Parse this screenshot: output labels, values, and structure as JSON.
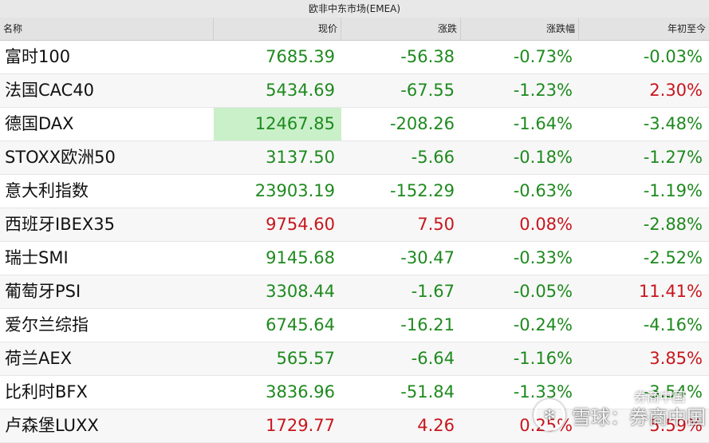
{
  "title": "欧非中东市场(EMEA)",
  "columns": [
    "名称",
    "现价",
    "涨跌",
    "涨跌幅",
    "年初至今"
  ],
  "rows": [
    {
      "name": "富时100",
      "price": "7685.39",
      "change": "-56.38",
      "pct": "-0.73%",
      "ytd": "-0.03%",
      "price_color": "green",
      "chg_color": "green",
      "pct_color": "green",
      "ytd_color": "green"
    },
    {
      "name": "法国CAC40",
      "price": "5434.69",
      "change": "-67.55",
      "pct": "-1.23%",
      "ytd": "2.30%",
      "price_color": "green",
      "chg_color": "green",
      "pct_color": "green",
      "ytd_color": "red"
    },
    {
      "name": "德国DAX",
      "price": "12467.85",
      "change": "-208.26",
      "pct": "-1.64%",
      "ytd": "-3.48%",
      "price_color": "green",
      "chg_color": "green",
      "pct_color": "green",
      "ytd_color": "green",
      "highlight": true
    },
    {
      "name": "STOXX欧洲50",
      "price": "3137.50",
      "change": "-5.66",
      "pct": "-0.18%",
      "ytd": "-1.27%",
      "price_color": "green",
      "chg_color": "green",
      "pct_color": "green",
      "ytd_color": "green"
    },
    {
      "name": "意大利指数",
      "price": "23903.19",
      "change": "-152.29",
      "pct": "-0.63%",
      "ytd": "-1.19%",
      "price_color": "green",
      "chg_color": "green",
      "pct_color": "green",
      "ytd_color": "green"
    },
    {
      "name": "西班牙IBEX35",
      "price": "9754.60",
      "change": "7.50",
      "pct": "0.08%",
      "ytd": "-2.88%",
      "price_color": "red",
      "chg_color": "red",
      "pct_color": "red",
      "ytd_color": "green"
    },
    {
      "name": "瑞士SMI",
      "price": "9145.68",
      "change": "-30.47",
      "pct": "-0.33%",
      "ytd": "-2.52%",
      "price_color": "green",
      "chg_color": "green",
      "pct_color": "green",
      "ytd_color": "green"
    },
    {
      "name": "葡萄牙PSI",
      "price": "3308.44",
      "change": "-1.67",
      "pct": "-0.05%",
      "ytd": "11.41%",
      "price_color": "green",
      "chg_color": "green",
      "pct_color": "green",
      "ytd_color": "red"
    },
    {
      "name": "爱尔兰综指",
      "price": "6745.64",
      "change": "-16.21",
      "pct": "-0.24%",
      "ytd": "-4.16%",
      "price_color": "green",
      "chg_color": "green",
      "pct_color": "green",
      "ytd_color": "green"
    },
    {
      "name": "荷兰AEX",
      "price": "565.57",
      "change": "-6.64",
      "pct": "-1.16%",
      "ytd": "3.85%",
      "price_color": "green",
      "chg_color": "green",
      "pct_color": "green",
      "ytd_color": "red"
    },
    {
      "name": "比利时BFX",
      "price": "3836.96",
      "change": "-51.84",
      "pct": "-1.33%",
      "ytd": "-3.54%",
      "price_color": "green",
      "chg_color": "green",
      "pct_color": "green",
      "ytd_color": "green"
    },
    {
      "name": "卢森堡LUXX",
      "price": "1729.77",
      "change": "4.26",
      "pct": "0.25%",
      "ytd": "5.59%",
      "price_color": "red",
      "chg_color": "red",
      "pct_color": "red",
      "ytd_color": "red"
    }
  ],
  "colors": {
    "green": "#1e8a1e",
    "red": "#c8161d",
    "highlight": "#c9f0c9"
  },
  "watermark": {
    "icon": "snowball-logo-icon",
    "main": "雪球：券商中国",
    "small": "券商中国"
  }
}
